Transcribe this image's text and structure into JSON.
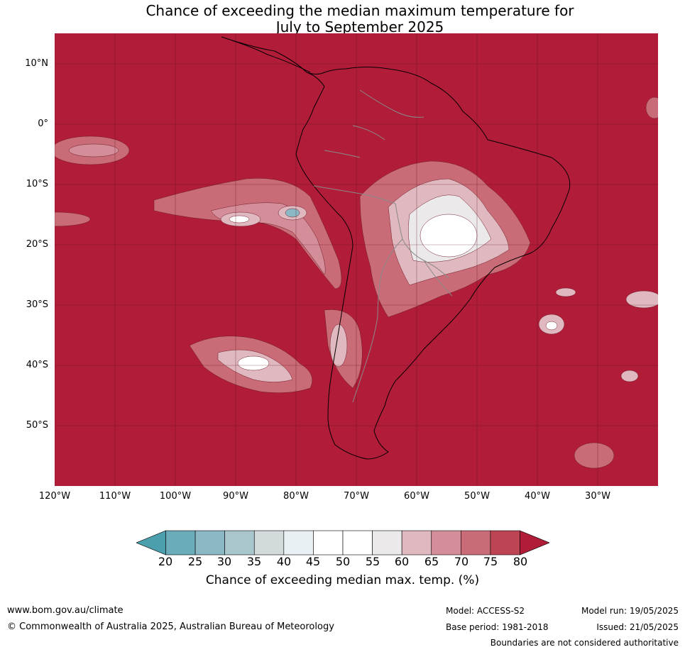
{
  "title": {
    "line1": "Chance of exceeding the median maximum temperature for",
    "line2": "July to September 2025"
  },
  "map": {
    "lat_labels": [
      "10°N",
      "0°",
      "10°S",
      "20°S",
      "30°S",
      "40°S",
      "50°S"
    ],
    "lon_labels": [
      "120°W",
      "110°W",
      "100°W",
      "90°W",
      "80°W",
      "70°W",
      "60°W",
      "50°W",
      "40°W",
      "30°W"
    ],
    "background_color": "#b11c38"
  },
  "colorbar": {
    "ticks": [
      "20",
      "25",
      "30",
      "35",
      "40",
      "45",
      "50",
      "55",
      "60",
      "65",
      "70",
      "75",
      "80"
    ],
    "colors": [
      "#4c9fad",
      "#6aacba",
      "#8bb8c5",
      "#a9c6cc",
      "#d2dadb",
      "#e8f0f3",
      "#ffffff",
      "#ffffff",
      "#ebe9ea",
      "#e0b8bf",
      "#d48e99",
      "#c96c77",
      "#bd4453",
      "#b11c38"
    ],
    "label": "Chance of exceeding median max. temp. (%)"
  },
  "footer": {
    "website": "www.bom.gov.au/climate",
    "copyright": "© Commonwealth of Australia 2025, Australian Bureau of Meteorology",
    "model": "Model: ACCESS-S2",
    "base_period": "Base period: 1981-2018",
    "model_run": "Model run: 19/05/2025",
    "issued": "Issued: 21/05/2025",
    "disclaimer": "Boundaries are not considered authoritative"
  }
}
